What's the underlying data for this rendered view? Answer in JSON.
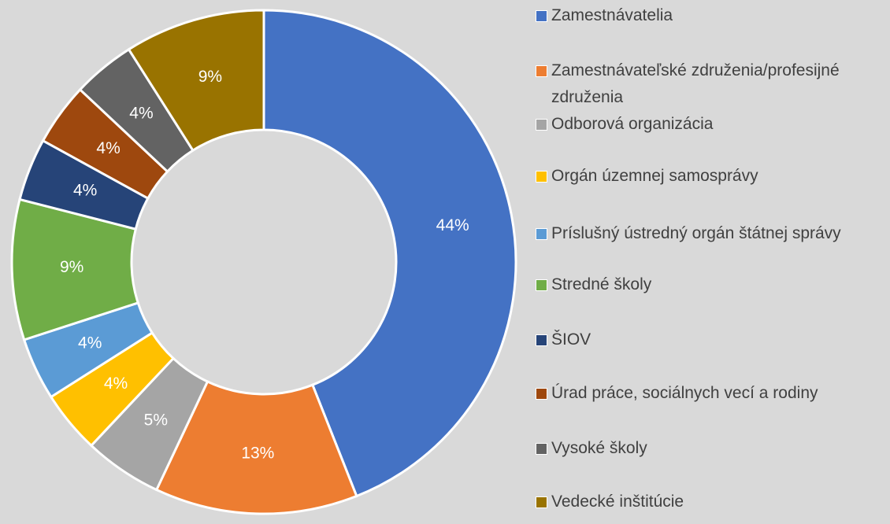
{
  "chart_data": {
    "type": "donut",
    "categories": [
      "Zamestnávatelia",
      "Zamestnávateľské združenia/profesijné združenia",
      "Odborová organizácia",
      "Orgán územnej samosprávy",
      "Príslušný ústredný orgán štátnej správy",
      "Stredné školy",
      "ŠIOV",
      "Úrad práce, sociálnych vecí a rodiny",
      "Vysoké školy",
      "Vedecké inštitúcie"
    ],
    "values": [
      44,
      13,
      5,
      4,
      4,
      9,
      4,
      4,
      4,
      9
    ],
    "value_labels": [
      "44%",
      "13%",
      "5%",
      "4%",
      "4%",
      "9%",
      "4%",
      "4%",
      "4%",
      "9%"
    ],
    "colors": [
      "#4472c4",
      "#ed7d31",
      "#a5a5a5",
      "#ffc000",
      "#5b9bd5",
      "#70ad47",
      "#264478",
      "#9e480e",
      "#636363",
      "#997300"
    ],
    "legend": "right"
  }
}
